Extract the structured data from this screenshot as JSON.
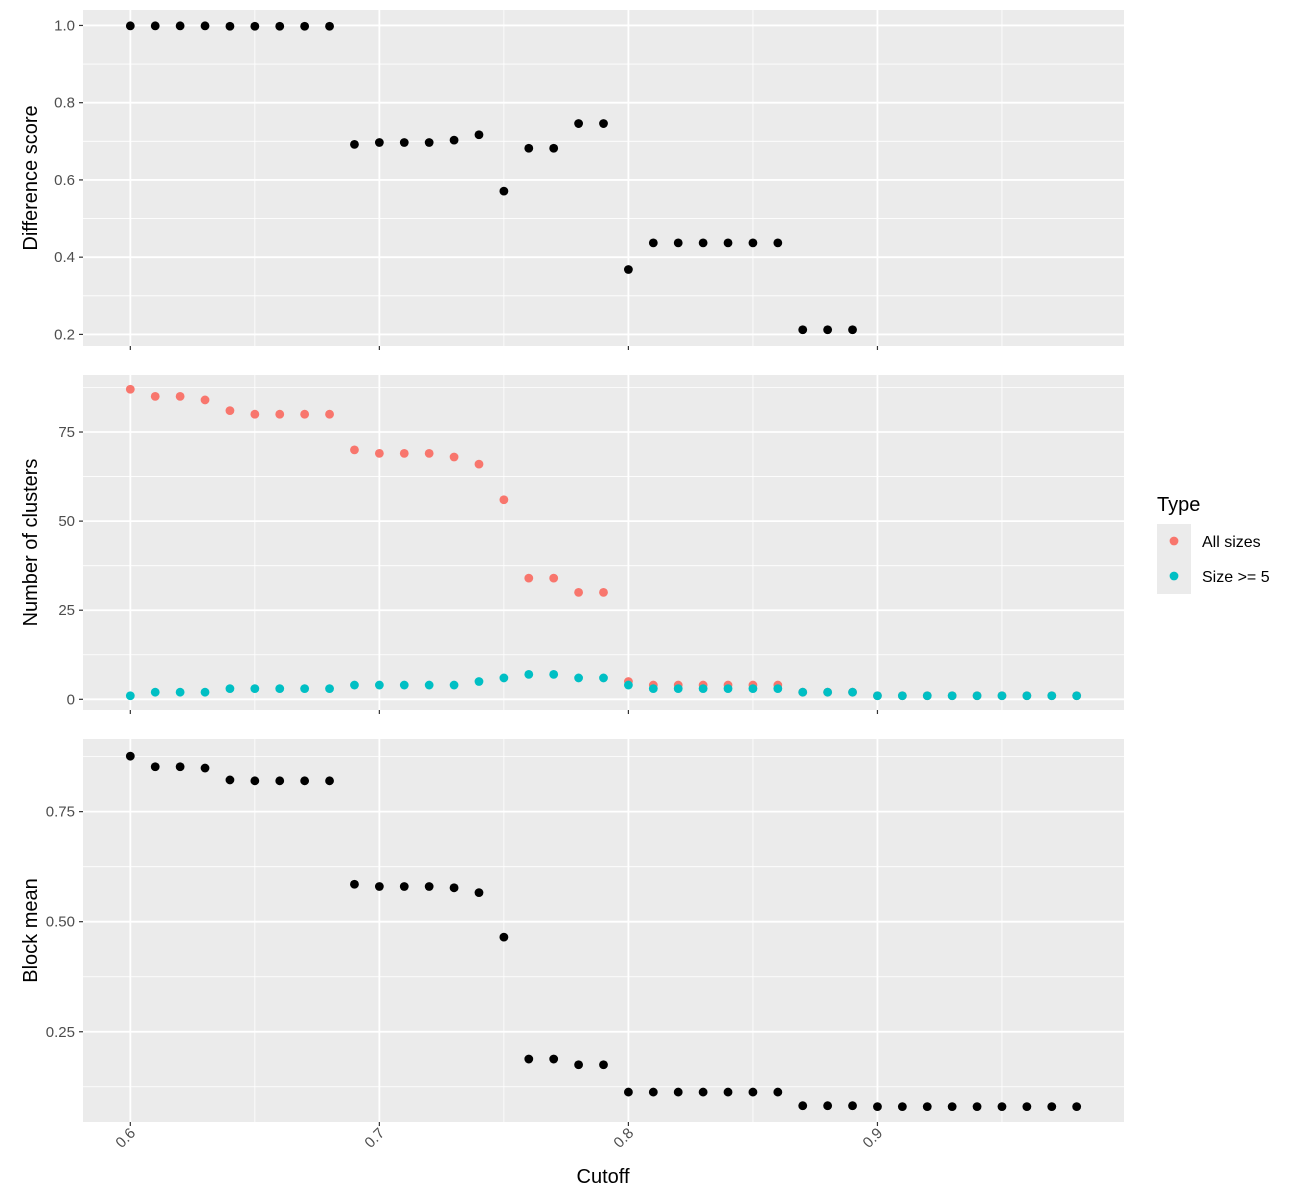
{
  "chart_data": {
    "type": "scatter",
    "xlabel": "Cutoff",
    "xlim": [
      0.581,
      0.999
    ],
    "x_ticks": [
      "0.6",
      "0.7",
      "0.8",
      "0.9"
    ],
    "x_tick_values": [
      0.6,
      0.7,
      0.8,
      0.9
    ],
    "grid": true,
    "legend": {
      "title": "Type",
      "placement": "right",
      "items": [
        {
          "label": "All sizes",
          "color": "#F8766D"
        },
        {
          "label": "Size >= 5",
          "color": "#00BFC4"
        }
      ]
    },
    "panels": [
      {
        "ylabel": "Difference score",
        "ylim": [
          0.17,
          1.04
        ],
        "y_ticks": [
          "0.2",
          "0.4",
          "0.6",
          "0.8",
          "1.0"
        ],
        "y_tick_values": [
          0.2,
          0.4,
          0.6,
          0.8,
          1.0
        ],
        "series": [
          {
            "color": "#000000",
            "x": [
              0.6,
              0.61,
              0.62,
              0.63,
              0.64,
              0.65,
              0.66,
              0.67,
              0.68,
              0.69,
              0.7,
              0.71,
              0.72,
              0.73,
              0.74,
              0.75,
              0.76,
              0.77,
              0.78,
              0.79,
              0.8,
              0.81,
              0.82,
              0.83,
              0.84,
              0.85,
              0.86,
              0.87,
              0.88,
              0.89
            ],
            "values": [
              0.999,
              0.999,
              0.999,
              0.999,
              0.998,
              0.998,
              0.998,
              0.998,
              0.998,
              0.692,
              0.697,
              0.697,
              0.697,
              0.703,
              0.717,
              0.571,
              0.682,
              0.682,
              0.746,
              0.746,
              0.368,
              0.437,
              0.437,
              0.437,
              0.437,
              0.437,
              0.437,
              0.212,
              0.212,
              0.212
            ]
          }
        ]
      },
      {
        "ylabel": "Number of clusters",
        "ylim": [
          -3,
          91
        ],
        "y_ticks": [
          "0",
          "25",
          "50",
          "75"
        ],
        "y_tick_values": [
          0,
          25,
          50,
          75
        ],
        "series": [
          {
            "name": "All sizes",
            "color": "#F8766D",
            "x": [
              0.6,
              0.61,
              0.62,
              0.63,
              0.64,
              0.65,
              0.66,
              0.67,
              0.68,
              0.69,
              0.7,
              0.71,
              0.72,
              0.73,
              0.74,
              0.75,
              0.76,
              0.77,
              0.78,
              0.79,
              0.8,
              0.81,
              0.82,
              0.83,
              0.84,
              0.85,
              0.86,
              0.87,
              0.88,
              0.89,
              0.9,
              0.91,
              0.92,
              0.93,
              0.94,
              0.95,
              0.96,
              0.97,
              0.98
            ],
            "values": [
              87,
              85,
              85,
              84,
              81,
              80,
              80,
              80,
              80,
              70,
              69,
              69,
              69,
              68,
              66,
              56,
              34,
              34,
              30,
              30,
              5,
              4,
              4,
              4,
              4,
              4,
              4,
              2,
              2,
              2,
              1,
              1,
              1,
              1,
              1,
              1,
              1,
              1,
              1
            ]
          },
          {
            "name": "Size >= 5",
            "color": "#00BFC4",
            "x": [
              0.6,
              0.61,
              0.62,
              0.63,
              0.64,
              0.65,
              0.66,
              0.67,
              0.68,
              0.69,
              0.7,
              0.71,
              0.72,
              0.73,
              0.74,
              0.75,
              0.76,
              0.77,
              0.78,
              0.79,
              0.8,
              0.81,
              0.82,
              0.83,
              0.84,
              0.85,
              0.86,
              0.87,
              0.88,
              0.89,
              0.9,
              0.91,
              0.92,
              0.93,
              0.94,
              0.95,
              0.96,
              0.97,
              0.98
            ],
            "values": [
              1,
              2,
              2,
              2,
              3,
              3,
              3,
              3,
              3,
              4,
              4,
              4,
              4,
              4,
              5,
              6,
              7,
              7,
              6,
              6,
              4,
              3,
              3,
              3,
              3,
              3,
              3,
              2,
              2,
              2,
              1,
              1,
              1,
              1,
              1,
              1,
              1,
              1,
              1
            ]
          }
        ]
      },
      {
        "ylabel": "Block mean",
        "ylim": [
          0.045,
          0.915
        ],
        "y_ticks": [
          "0.25",
          "0.50",
          "0.75"
        ],
        "y_tick_values": [
          0.25,
          0.5,
          0.75
        ],
        "series": [
          {
            "color": "#000000",
            "x": [
              0.6,
              0.61,
              0.62,
              0.63,
              0.64,
              0.65,
              0.66,
              0.67,
              0.68,
              0.69,
              0.7,
              0.71,
              0.72,
              0.73,
              0.74,
              0.75,
              0.76,
              0.77,
              0.78,
              0.79,
              0.8,
              0.81,
              0.82,
              0.83,
              0.84,
              0.85,
              0.86,
              0.87,
              0.88,
              0.89,
              0.9,
              0.91,
              0.92,
              0.93,
              0.94,
              0.95,
              0.96,
              0.97,
              0.98
            ],
            "values": [
              0.876,
              0.852,
              0.852,
              0.849,
              0.822,
              0.82,
              0.82,
              0.82,
              0.82,
              0.585,
              0.58,
              0.58,
              0.58,
              0.577,
              0.566,
              0.465,
              0.188,
              0.188,
              0.175,
              0.175,
              0.113,
              0.113,
              0.113,
              0.113,
              0.113,
              0.113,
              0.113,
              0.082,
              0.082,
              0.082,
              0.08,
              0.08,
              0.08,
              0.08,
              0.08,
              0.08,
              0.08,
              0.08,
              0.08
            ]
          }
        ]
      }
    ]
  }
}
